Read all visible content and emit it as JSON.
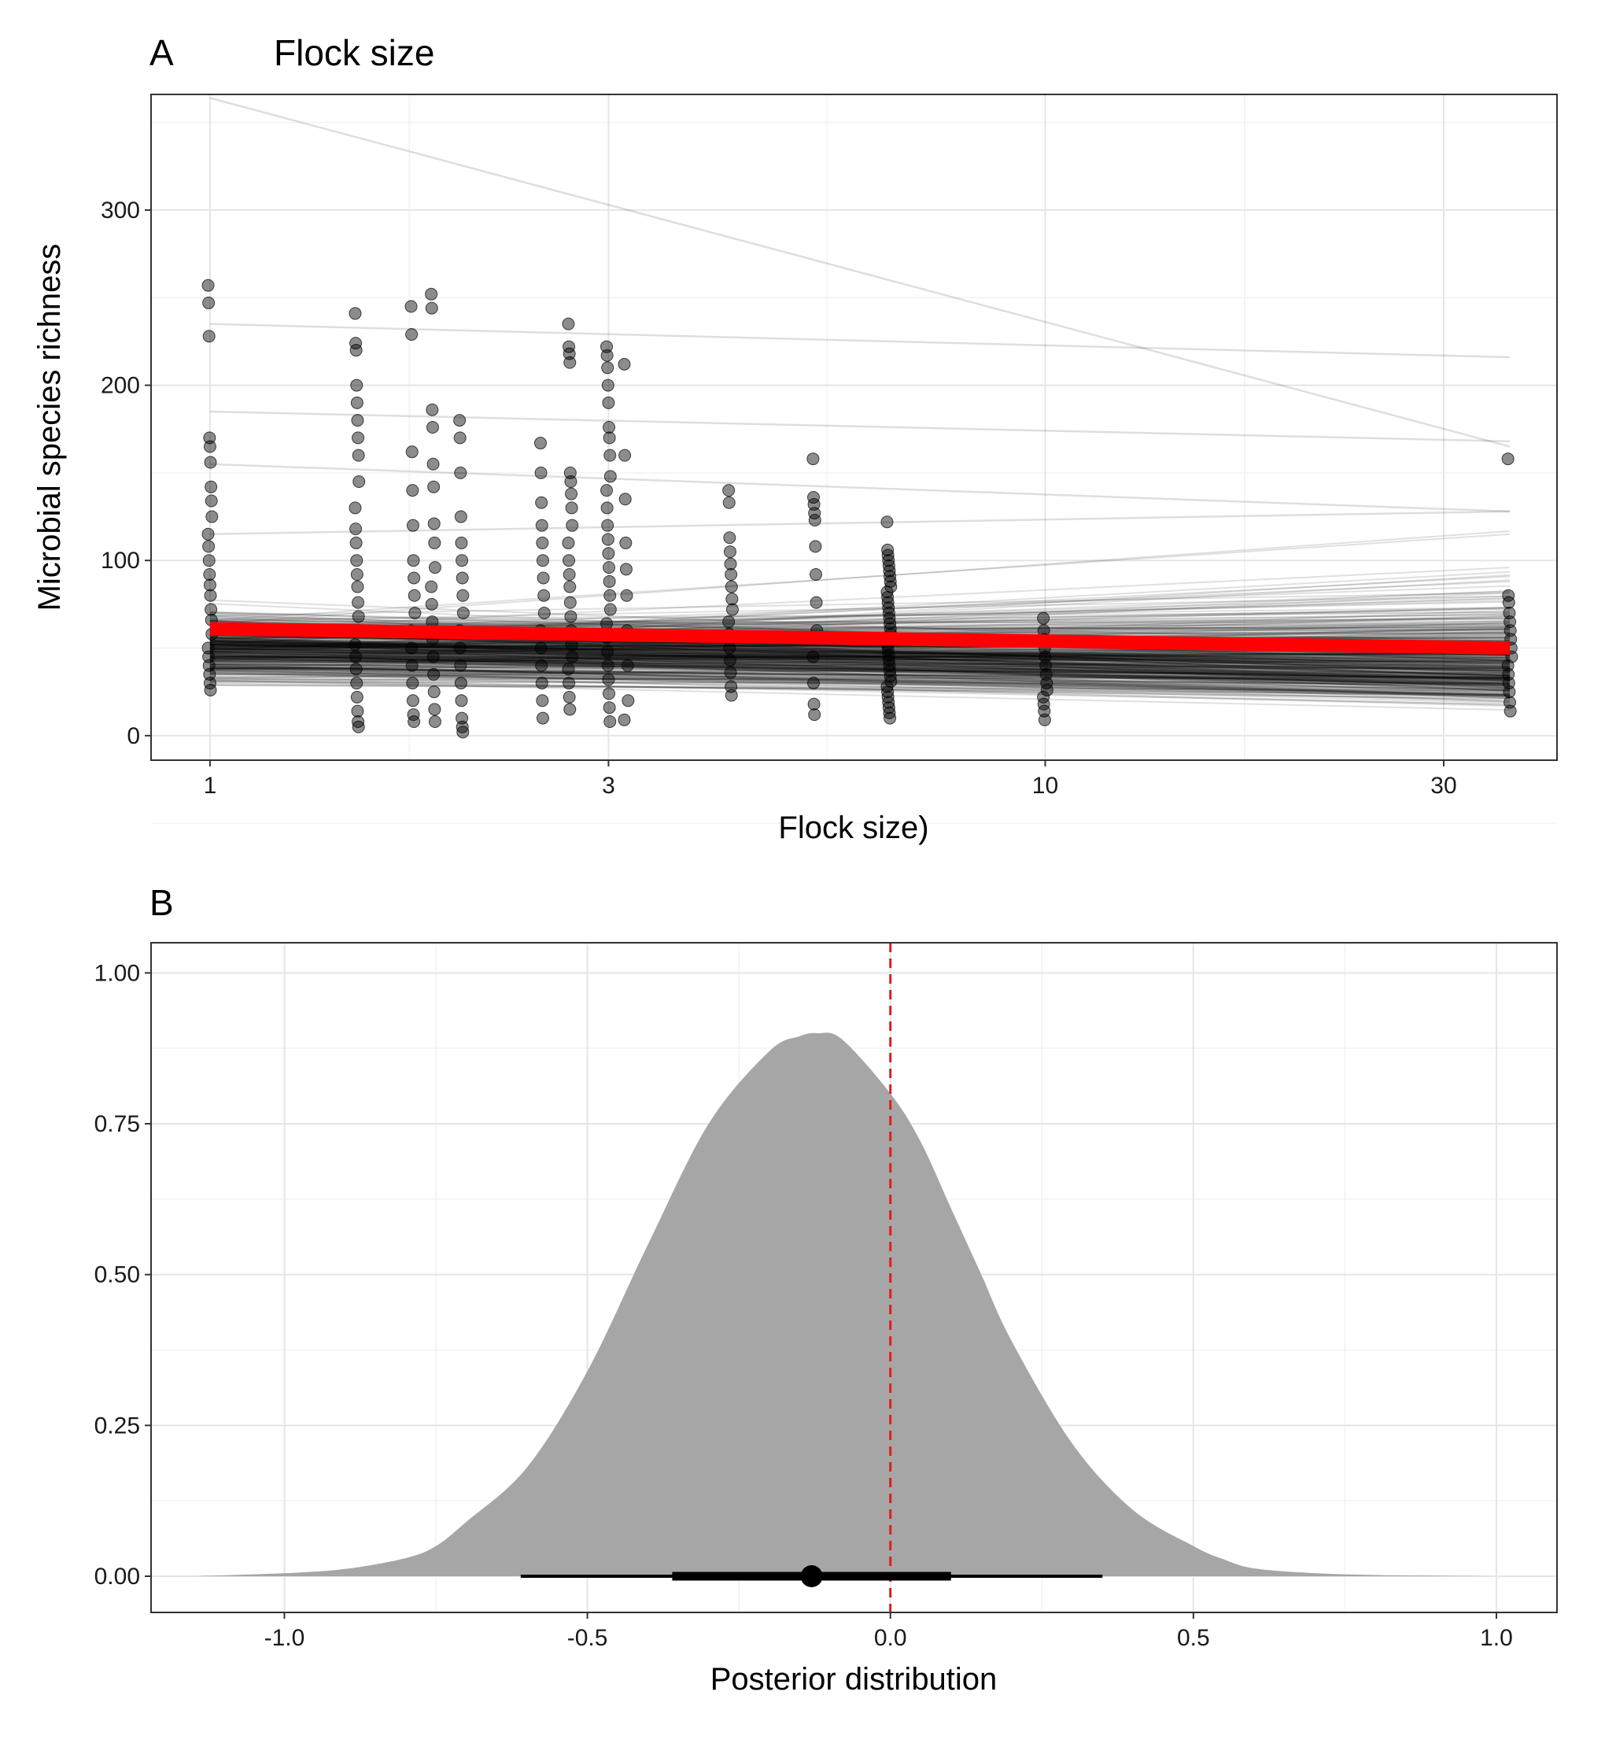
{
  "chart_data": [
    {
      "panel": "A",
      "type": "scatter",
      "title": "Flock size",
      "xlabel": "Flock size)",
      "ylabel": "Microbial species richness",
      "x_scale": "log10",
      "xlim": [
        0.85,
        41
      ],
      "ylim": [
        -14,
        366
      ],
      "x_ticks": [
        1,
        3,
        10,
        30
      ],
      "x_tick_labels": [
        "1",
        "3",
        "10",
        "30"
      ],
      "y_ticks": [
        0,
        100,
        200,
        300
      ],
      "y_tick_labels": [
        "0",
        "100",
        "200",
        "300"
      ],
      "grid": true,
      "points": {
        "opacity": 0.45,
        "columns": [
          {
            "x": 1,
            "y": [
              257,
              247,
              228,
              170,
              165,
              156,
              142,
              134,
              125,
              115,
              108,
              100,
              92,
              86,
              80,
              72,
              66,
              58,
              50,
              45,
              40,
              35,
              30,
              26
            ]
          },
          {
            "x": 1.5,
            "y": [
              241,
              224,
              220,
              200,
              190,
              180,
              170,
              160,
              145,
              130,
              118,
              110,
              100,
              92,
              85,
              76,
              68,
              60,
              52,
              45,
              38,
              30,
              22,
              14,
              8,
              5
            ]
          },
          {
            "x": 1.75,
            "y": [
              245,
              229,
              162,
              140,
              120,
              100,
              90,
              80,
              70,
              60,
              50,
              40,
              30,
              20,
              12,
              8
            ]
          },
          {
            "x": 1.85,
            "y": [
              252,
              244,
              186,
              176,
              155,
              142,
              121,
              110,
              96,
              85,
              75,
              65,
              55,
              45,
              35,
              25,
              15,
              8
            ]
          },
          {
            "x": 2,
            "y": [
              180,
              170,
              150,
              125,
              110,
              100,
              90,
              80,
              70,
              60,
              50,
              40,
              30,
              20,
              10,
              5,
              2
            ]
          },
          {
            "x": 2.5,
            "y": [
              167,
              150,
              133,
              120,
              110,
              100,
              90,
              80,
              70,
              60,
              50,
              40,
              30,
              20,
              10
            ]
          },
          {
            "x": 2.7,
            "y": [
              235,
              222,
              218,
              213,
              150,
              145,
              138,
              130,
              120,
              110,
              100,
              92,
              85,
              76,
              68,
              60,
              52,
              45,
              38,
              30,
              22,
              15
            ]
          },
          {
            "x": 3,
            "y": [
              222,
              217,
              210,
              200,
              190,
              176,
              170,
              160,
              148,
              140,
              130,
              120,
              112,
              104,
              96,
              88,
              80,
              72,
              64,
              56,
              48,
              40,
              32,
              24,
              16,
              8
            ]
          },
          {
            "x": 3.15,
            "y": [
              212,
              160,
              135,
              110,
              95,
              80,
              60,
              40,
              20,
              9
            ]
          },
          {
            "x": 4.2,
            "y": [
              140,
              133,
              113,
              105,
              98,
              92,
              85,
              78,
              72,
              65,
              58,
              50,
              43,
              36,
              28,
              23
            ]
          },
          {
            "x": 5.3,
            "y": [
              158,
              136,
              132,
              127,
              123,
              108,
              92,
              76,
              60,
              45,
              30,
              18,
              12
            ]
          },
          {
            "x": 6.5,
            "y": [
              122,
              106,
              103,
              100,
              97,
              94,
              91,
              88,
              85,
              82,
              79,
              76,
              73,
              70,
              67,
              64,
              61,
              58,
              55,
              52,
              49,
              46,
              43,
              40,
              37,
              34,
              31,
              28,
              25,
              22,
              19,
              16,
              13,
              10
            ]
          },
          {
            "x": 10,
            "y": [
              67,
              60,
              55,
              50,
              45,
              40,
              35,
              30,
              26,
              22,
              18,
              14,
              9
            ]
          },
          {
            "x": 36,
            "y": [
              158,
              80,
              76,
              70,
              65,
              60,
              55,
              50,
              45,
              40,
              35,
              30,
              25,
              19,
              14
            ]
          }
        ]
      },
      "posterior_lines": {
        "color": "#000000",
        "note_type": "fitted posterior draws",
        "x_range": [
          1,
          36
        ],
        "highlight_lines": [
          {
            "y_start": 364,
            "y_end": 165
          },
          {
            "y_start": 235,
            "y_end": 216
          },
          {
            "y_start": 185,
            "y_end": 168
          },
          {
            "y_start": 155,
            "y_end": 128
          },
          {
            "y_start": 115,
            "y_end": 128
          }
        ]
      },
      "mean_fit": {
        "color": "#ff0000",
        "y_start": 61,
        "y_end": 50
      }
    },
    {
      "panel": "B",
      "type": "area",
      "title": "",
      "xlabel": "Posterior distribution",
      "ylabel": "",
      "xlim": [
        -1.22,
        1.1
      ],
      "ylim": [
        -0.06,
        1.05
      ],
      "x_ticks": [
        -1.0,
        -0.5,
        0.0,
        0.5,
        1.0
      ],
      "x_tick_labels": [
        "-1.0",
        "-0.5",
        "0.0",
        "0.5",
        "1.0"
      ],
      "y_ticks": [
        0.0,
        0.25,
        0.5,
        0.75,
        1.0
      ],
      "y_tick_labels": [
        "0.00",
        "0.25",
        "0.50",
        "0.75",
        "1.00"
      ],
      "grid": true,
      "density": {
        "fill": "#a6a6a6",
        "x": [
          -1.15,
          -1.0,
          -0.9,
          -0.8,
          -0.75,
          -0.7,
          -0.6,
          -0.5,
          -0.4,
          -0.3,
          -0.2,
          -0.15,
          -0.12,
          -0.08,
          0.0,
          0.05,
          0.1,
          0.15,
          0.2,
          0.3,
          0.4,
          0.5,
          0.55,
          0.6,
          0.7,
          0.8,
          0.9,
          1.0
        ],
        "y": [
          0.0,
          0.005,
          0.012,
          0.03,
          0.05,
          0.09,
          0.18,
          0.34,
          0.55,
          0.75,
          0.87,
          0.895,
          0.9,
          0.89,
          0.8,
          0.72,
          0.61,
          0.5,
          0.39,
          0.22,
          0.11,
          0.05,
          0.028,
          0.013,
          0.005,
          0.002,
          0.001,
          0.0
        ]
      },
      "reference_line": {
        "x": 0.0,
        "color": "#e31a1c",
        "style": "dashed"
      },
      "point_interval": {
        "point": -0.13,
        "inner": [
          -0.36,
          0.1
        ],
        "outer": [
          -0.61,
          0.35
        ]
      }
    }
  ],
  "labels": {
    "panel_a_tag": "A",
    "panel_b_tag": "B"
  },
  "colors": {
    "points": "#000000",
    "posterior_lines": "#000000",
    "mean_fit": "#ff0000",
    "density_fill": "#a6a6a6",
    "reference_line": "#e31a1c"
  }
}
